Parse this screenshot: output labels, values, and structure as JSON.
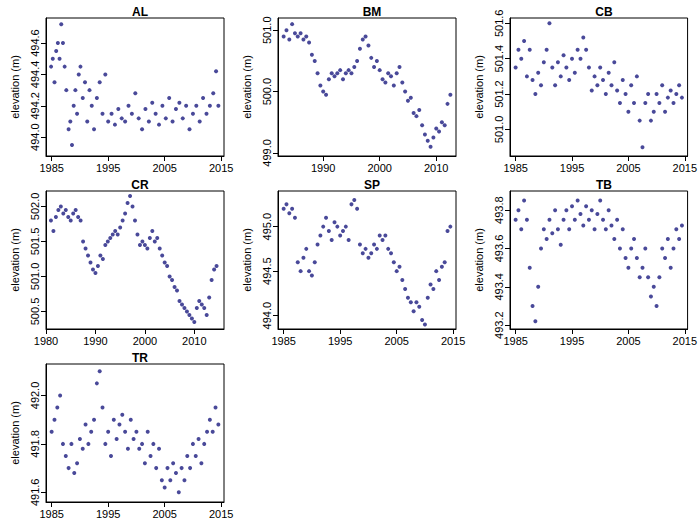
{
  "chart_data": [
    {
      "type": "scatter",
      "title": "AL",
      "y_label": "elevation (m)",
      "color": "#1b1b7f",
      "marker": "circle",
      "grid": false,
      "xlim": [
        1984,
        2015.5
      ],
      "xticks": [
        1985,
        1995,
        2005,
        2015
      ],
      "ylim": [
        493.88,
        494.76
      ],
      "yticks": [
        {
          "value": 494,
          "label": "494.0"
        },
        494.2,
        494.4,
        494.6
      ],
      "x": [
        1984.9,
        1985.2,
        1985.5,
        1985.8,
        1986.1,
        1986.4,
        1986.7,
        1987.0,
        1987.3,
        1987.6,
        1988.0,
        1988.3,
        1988.6,
        1988.9,
        1989.2,
        1989.5,
        1989.8,
        1990.1,
        1990.5,
        1990.9,
        1991.3,
        1991.7,
        1992.1,
        1992.5,
        1993.0,
        1993.5,
        1994.0,
        1994.5,
        1995.0,
        1995.6,
        1996.2,
        1996.8,
        1997.4,
        1998.0,
        1998.6,
        1999.2,
        1999.8,
        2000.4,
        2001.0,
        2001.6,
        2002.2,
        2002.8,
        2003.4,
        2004.0,
        2004.6,
        2005.2,
        2005.8,
        2006.4,
        2007.0,
        2007.6,
        2008.2,
        2008.8,
        2009.4,
        2010.0,
        2010.6,
        2011.2,
        2011.8,
        2012.4,
        2013.0,
        2013.6,
        2014.1,
        2014.5
      ],
      "values": [
        494.45,
        494.5,
        494.35,
        494.55,
        494.6,
        494.5,
        494.72,
        494.6,
        494.45,
        494.3,
        494.05,
        494.1,
        493.95,
        494.2,
        494.3,
        494.15,
        494.4,
        494.45,
        494.25,
        494.35,
        494.1,
        494.3,
        494.2,
        494.05,
        494.25,
        494.35,
        494.15,
        494.4,
        494.1,
        494.15,
        494.08,
        494.18,
        494.12,
        494.1,
        494.2,
        494.15,
        494.28,
        494.12,
        494.05,
        494.18,
        494.1,
        494.22,
        494.15,
        494.08,
        494.2,
        494.12,
        494.25,
        494.1,
        494.18,
        494.22,
        494.12,
        494.2,
        494.05,
        494.15,
        494.2,
        494.1,
        494.25,
        494.15,
        494.2,
        494.28,
        494.42,
        494.2
      ]
    },
    {
      "type": "scatter",
      "title": "BM",
      "y_label": "elevation (m)",
      "color": "#1b1b7f",
      "marker": "circle",
      "grid": false,
      "xlim": [
        1982,
        2013.5
      ],
      "xticks": [
        1990,
        2000,
        2010
      ],
      "ylim": [
        498.95,
        501.2
      ],
      "yticks": [
        {
          "value": 499,
          "label": "499.0"
        },
        {
          "value": 500,
          "label": "500.0"
        },
        {
          "value": 501,
          "label": "501.0"
        }
      ],
      "x": [
        1983,
        1983.5,
        1984,
        1984.5,
        1985,
        1985.5,
        1986,
        1986.5,
        1987,
        1987.5,
        1988,
        1988.5,
        1989,
        1989.5,
        1990,
        1990.5,
        1991,
        1991.5,
        1992,
        1992.5,
        1993,
        1993.5,
        1994,
        1994.5,
        1995,
        1995.5,
        1996,
        1996.5,
        1997,
        1997.5,
        1998,
        1998.5,
        1999,
        1999.5,
        2000,
        2000.5,
        2001,
        2001.5,
        2002,
        2002.5,
        2003,
        2003.5,
        2004,
        2004.5,
        2005,
        2005.5,
        2006,
        2006.5,
        2007,
        2007.5,
        2008,
        2008.5,
        2009,
        2009.5,
        2010,
        2010.5,
        2011,
        2011.5,
        2012,
        2012.5
      ],
      "values": [
        500.9,
        501.0,
        500.85,
        501.1,
        500.95,
        500.9,
        500.95,
        500.85,
        500.9,
        500.8,
        500.6,
        500.5,
        500.3,
        500.1,
        500.0,
        499.95,
        500.2,
        500.3,
        500.25,
        500.3,
        500.35,
        500.2,
        500.3,
        500.35,
        500.3,
        500.4,
        500.5,
        500.7,
        500.85,
        500.9,
        500.75,
        500.55,
        500.4,
        500.5,
        500.35,
        500.2,
        500.15,
        500.3,
        500.25,
        500.1,
        500.3,
        500.4,
        500.15,
        500.0,
        499.85,
        499.9,
        499.65,
        499.6,
        499.7,
        499.45,
        499.3,
        499.2,
        499.1,
        499.25,
        499.4,
        499.35,
        499.5,
        499.45,
        499.8,
        499.95
      ]
    },
    {
      "type": "scatter",
      "title": "CB",
      "y_label": "elevation (m)",
      "color": "#1b1b7f",
      "marker": "circle",
      "grid": false,
      "xlim": [
        1984,
        2015.5
      ],
      "xticks": [
        1985,
        1995,
        2005,
        2015
      ],
      "ylim": [
        500.85,
        501.63
      ],
      "yticks": [
        {
          "value": 501,
          "label": "501.0"
        },
        501.2,
        501.4,
        501.6
      ],
      "x": [
        1985,
        1985.5,
        1986,
        1986.5,
        1987,
        1987.5,
        1988,
        1988.5,
        1989,
        1989.5,
        1990,
        1990.5,
        1991,
        1991.5,
        1992,
        1992.5,
        1993,
        1993.5,
        1994,
        1994.5,
        1995,
        1995.5,
        1996,
        1996.5,
        1997,
        1997.5,
        1998,
        1998.5,
        1999,
        1999.5,
        2000,
        2000.5,
        2001,
        2001.5,
        2002,
        2002.5,
        2003,
        2003.5,
        2004,
        2004.5,
        2005,
        2005.5,
        2006,
        2006.5,
        2007,
        2007.5,
        2008,
        2008.5,
        2009,
        2009.5,
        2010,
        2010.5,
        2011,
        2011.5,
        2012,
        2012.5,
        2013,
        2013.5,
        2014,
        2014.5
      ],
      "values": [
        501.35,
        501.45,
        501.4,
        501.5,
        501.3,
        501.45,
        501.28,
        501.2,
        501.32,
        501.25,
        501.38,
        501.45,
        501.6,
        501.35,
        501.25,
        501.38,
        501.3,
        501.42,
        501.35,
        501.28,
        501.4,
        501.32,
        501.45,
        501.4,
        501.52,
        501.45,
        501.35,
        501.22,
        501.3,
        501.25,
        501.35,
        501.28,
        501.2,
        501.32,
        501.25,
        501.38,
        501.22,
        501.15,
        501.28,
        501.2,
        501.1,
        501.25,
        501.15,
        501.3,
        501.05,
        500.9,
        501.15,
        501.2,
        501.05,
        501.1,
        501.2,
        501.15,
        501.25,
        501.1,
        501.18,
        501.22,
        501.15,
        501.2,
        501.25,
        501.18
      ]
    },
    {
      "type": "scatter",
      "title": "CR",
      "y_label": "elevation (m)",
      "color": "#1b1b7f",
      "marker": "circle",
      "grid": false,
      "xlim": [
        1980,
        2016
      ],
      "xticks": [
        1980,
        1990,
        2000,
        2010
      ],
      "ylim": [
        500.25,
        502.22
      ],
      "yticks": [
        500.5,
        {
          "value": 501,
          "label": "501.0"
        },
        501.5,
        {
          "value": 502,
          "label": "502.0"
        }
      ],
      "x": [
        1981,
        1981.5,
        1982,
        1982.5,
        1983,
        1983.5,
        1984,
        1984.5,
        1985,
        1985.5,
        1986,
        1986.5,
        1987,
        1987.5,
        1988,
        1988.5,
        1989,
        1989.5,
        1990,
        1990.5,
        1991,
        1991.5,
        1992,
        1992.5,
        1993,
        1993.5,
        1994,
        1994.5,
        1995,
        1995.5,
        1996,
        1996.5,
        1997,
        1997.5,
        1998,
        1998.5,
        1999,
        1999.5,
        2000,
        2000.5,
        2001,
        2001.5,
        2002,
        2002.5,
        2003,
        2003.5,
        2004,
        2004.5,
        2005,
        2005.5,
        2006,
        2006.5,
        2007,
        2007.5,
        2008,
        2008.5,
        2009,
        2009.5,
        2010,
        2010.5,
        2011,
        2011.5,
        2012,
        2012.5,
        2013,
        2013.5,
        2014,
        2014.5
      ],
      "values": [
        501.8,
        501.65,
        501.85,
        501.95,
        502.0,
        501.9,
        501.95,
        501.85,
        501.8,
        501.9,
        501.95,
        501.85,
        501.8,
        501.5,
        501.4,
        501.3,
        501.2,
        501.1,
        501.05,
        501.15,
        501.3,
        501.25,
        501.45,
        501.5,
        501.55,
        501.6,
        501.65,
        501.6,
        501.7,
        501.8,
        501.9,
        502.05,
        502.15,
        502.0,
        501.8,
        501.6,
        501.45,
        501.5,
        501.45,
        501.4,
        501.55,
        501.65,
        501.5,
        501.55,
        501.4,
        501.3,
        501.2,
        501.15,
        501.0,
        500.95,
        500.85,
        500.8,
        500.65,
        500.6,
        500.55,
        500.5,
        500.45,
        500.4,
        500.35,
        500.55,
        500.65,
        500.6,
        500.55,
        500.45,
        500.7,
        500.95,
        501.1,
        501.15
      ]
    },
    {
      "type": "scatter",
      "title": "SP",
      "y_label": "elevation (m)",
      "color": "#1b1b7f",
      "marker": "circle",
      "grid": false,
      "xlim": [
        1984,
        2015.5
      ],
      "xticks": [
        1985,
        1995,
        2005,
        2015
      ],
      "ylim": [
        493.85,
        495.4
      ],
      "yticks": [
        {
          "value": 494,
          "label": "494.0"
        },
        494.5,
        {
          "value": 495,
          "label": "495.0"
        }
      ],
      "x": [
        1985,
        1985.5,
        1986,
        1986.5,
        1987,
        1987.5,
        1988,
        1988.5,
        1989,
        1989.5,
        1990,
        1990.5,
        1991,
        1991.5,
        1992,
        1992.5,
        1993,
        1993.5,
        1994,
        1994.5,
        1995,
        1995.5,
        1996,
        1996.5,
        1997,
        1997.5,
        1998,
        1998.5,
        1999,
        1999.5,
        2000,
        2000.5,
        2001,
        2001.5,
        2002,
        2002.5,
        2003,
        2003.5,
        2004,
        2004.5,
        2005,
        2005.5,
        2006,
        2006.5,
        2007,
        2007.5,
        2008,
        2008.5,
        2009,
        2009.5,
        2010,
        2010.5,
        2011,
        2011.5,
        2012,
        2012.5,
        2013,
        2013.5,
        2014,
        2014.5
      ],
      "values": [
        495.2,
        495.25,
        495.15,
        495.2,
        495.1,
        494.6,
        494.5,
        494.65,
        494.75,
        494.5,
        494.45,
        494.6,
        494.8,
        494.9,
        495.0,
        495.1,
        494.95,
        494.85,
        495.05,
        495.0,
        494.9,
        494.95,
        495.0,
        494.85,
        495.25,
        495.3,
        495.2,
        494.8,
        494.7,
        494.75,
        494.65,
        494.7,
        494.8,
        494.75,
        494.9,
        494.85,
        494.9,
        494.75,
        494.7,
        494.6,
        494.5,
        494.55,
        494.4,
        494.3,
        494.2,
        494.15,
        494.05,
        494.15,
        494.1,
        493.95,
        493.9,
        494.2,
        494.35,
        494.3,
        494.5,
        494.4,
        494.55,
        494.6,
        494.95,
        495.0
      ]
    },
    {
      "type": "scatter",
      "title": "TB",
      "y_label": "elevation (m)",
      "color": "#1b1b7f",
      "marker": "circle",
      "grid": false,
      "xlim": [
        1984,
        2015.5
      ],
      "xticks": [
        1985,
        1995,
        2005,
        2015
      ],
      "ylim": [
        493.18,
        493.9
      ],
      "yticks": [
        493.2,
        493.4,
        493.6,
        493.8
      ],
      "x": [
        1985,
        1985.5,
        1986,
        1986.5,
        1987,
        1987.5,
        1988,
        1988.5,
        1989,
        1989.5,
        1990,
        1990.5,
        1991,
        1991.5,
        1992,
        1992.5,
        1993,
        1993.5,
        1994,
        1994.5,
        1995,
        1995.5,
        1996,
        1996.5,
        1997,
        1997.5,
        1998,
        1998.5,
        1999,
        1999.5,
        2000,
        2000.5,
        2001,
        2001.5,
        2002,
        2002.5,
        2003,
        2003.5,
        2004,
        2004.5,
        2005,
        2005.5,
        2006,
        2006.5,
        2007,
        2007.5,
        2008,
        2008.5,
        2009,
        2009.5,
        2010,
        2010.5,
        2011,
        2011.5,
        2012,
        2012.5,
        2013,
        2013.5,
        2014,
        2014.5
      ],
      "values": [
        493.75,
        493.8,
        493.7,
        493.85,
        493.75,
        493.5,
        493.3,
        493.22,
        493.4,
        493.6,
        493.7,
        493.65,
        493.75,
        493.68,
        493.8,
        493.7,
        493.62,
        493.75,
        493.8,
        493.7,
        493.82,
        493.75,
        493.85,
        493.78,
        493.72,
        493.82,
        493.75,
        493.8,
        493.7,
        493.78,
        493.85,
        493.75,
        493.7,
        493.8,
        493.72,
        493.65,
        493.75,
        493.6,
        493.7,
        493.55,
        493.5,
        493.6,
        493.65,
        493.55,
        493.45,
        493.5,
        493.6,
        493.45,
        493.35,
        493.4,
        493.3,
        493.45,
        493.6,
        493.55,
        493.65,
        493.5,
        493.6,
        493.7,
        493.65,
        493.72
      ]
    },
    {
      "type": "scatter",
      "title": "TR",
      "y_label": "elevation (m)",
      "color": "#1b1b7f",
      "marker": "circle",
      "grid": false,
      "xlim": [
        1984,
        2015.5
      ],
      "xticks": [
        1985,
        1995,
        2005,
        2015
      ],
      "ylim": [
        491.56,
        492.13
      ],
      "yticks": [
        491.6,
        491.8,
        {
          "value": 492,
          "label": "492.0"
        }
      ],
      "x": [
        1985,
        1985.5,
        1986,
        1986.5,
        1987,
        1987.5,
        1988,
        1988.5,
        1989,
        1989.5,
        1990,
        1990.5,
        1991,
        1991.5,
        1992,
        1992.5,
        1993,
        1993.5,
        1994,
        1994.5,
        1995,
        1995.5,
        1996,
        1996.5,
        1997,
        1997.5,
        1998,
        1998.5,
        1999,
        1999.5,
        2000,
        2000.5,
        2001,
        2001.5,
        2002,
        2002.5,
        2003,
        2003.5,
        2004,
        2004.5,
        2005,
        2005.5,
        2006,
        2006.5,
        2007,
        2007.5,
        2008,
        2008.5,
        2009,
        2009.5,
        2010,
        2010.5,
        2011,
        2011.5,
        2012,
        2012.5,
        2013,
        2013.5,
        2014,
        2014.5
      ],
      "values": [
        491.85,
        491.9,
        491.95,
        492.0,
        491.8,
        491.75,
        491.7,
        491.8,
        491.68,
        491.72,
        491.82,
        491.78,
        491.88,
        491.8,
        491.85,
        491.9,
        492.05,
        492.1,
        491.95,
        491.8,
        491.85,
        491.75,
        491.9,
        491.82,
        491.88,
        491.92,
        491.85,
        491.78,
        491.9,
        491.82,
        491.85,
        491.78,
        491.8,
        491.72,
        491.85,
        491.75,
        491.8,
        491.7,
        491.78,
        491.65,
        491.62,
        491.7,
        491.65,
        491.72,
        491.68,
        491.6,
        491.7,
        491.65,
        491.75,
        491.7,
        491.8,
        491.75,
        491.82,
        491.72,
        491.8,
        491.85,
        491.9,
        491.85,
        491.95,
        491.88
      ]
    }
  ]
}
